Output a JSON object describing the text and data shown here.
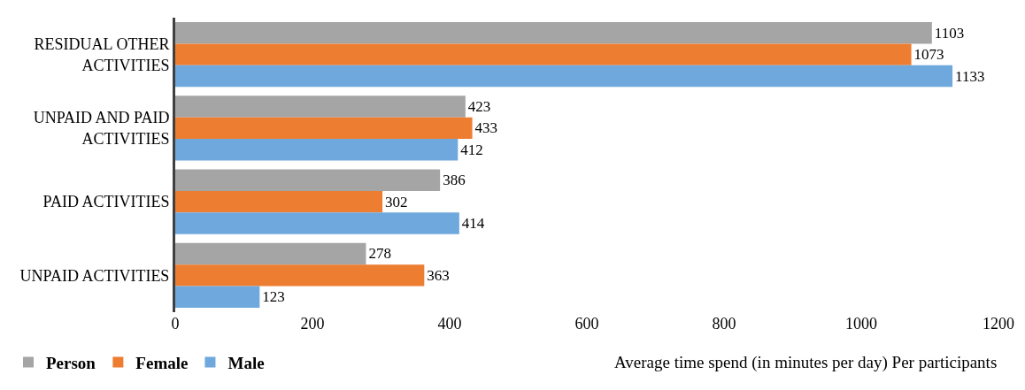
{
  "chart_data": {
    "type": "bar",
    "orientation": "horizontal",
    "categories": [
      "RESIDUAL OTHER ACTIVITIES",
      "UNPAID AND PAID ACTIVITIES",
      "PAID ACTIVITIES",
      "UNPAID ACTIVITIES"
    ],
    "series": [
      {
        "name": "Person",
        "color": "#a5a5a5",
        "values": [
          1103,
          423,
          386,
          278
        ]
      },
      {
        "name": "Female",
        "color": "#ed7d31",
        "values": [
          1073,
          433,
          302,
          363
        ]
      },
      {
        "name": "Male",
        "color": "#6fa8dc",
        "values": [
          1133,
          412,
          414,
          123
        ]
      }
    ],
    "xlim": [
      0,
      1200
    ],
    "xticks": [
      0,
      200,
      400,
      600,
      800,
      1000,
      1200
    ],
    "xlabel": "Average time spend (in minutes per day) Per participants",
    "data_labels": true,
    "legend": "bottom left"
  }
}
